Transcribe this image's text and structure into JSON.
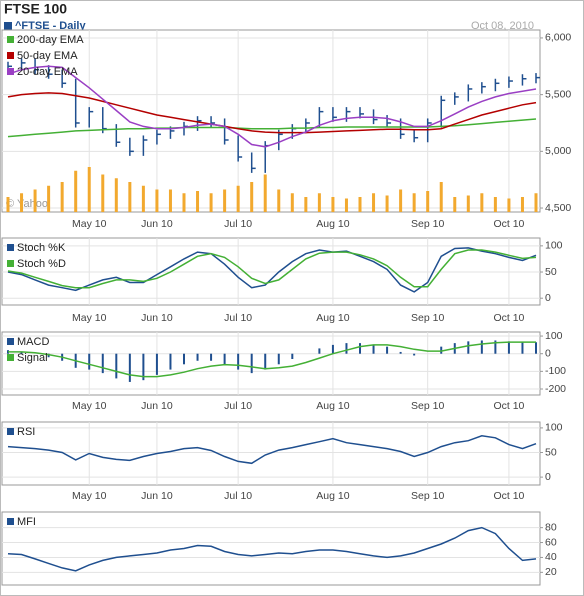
{
  "header": {
    "title": "FTSE 100",
    "subtitle": "^FTSE - Daily",
    "date": "Oct 08, 2010",
    "watermark": "© Yahoo!"
  },
  "chart_data": [
    {
      "type": "ohlc",
      "categories": [
        null,
        null,
        null,
        null,
        null,
        null,
        "May 10",
        null,
        null,
        null,
        null,
        "Jun 10",
        null,
        null,
        null,
        null,
        null,
        "Jul 10",
        null,
        null,
        null,
        null,
        null,
        null,
        "Aug 10",
        null,
        null,
        null,
        null,
        null,
        null,
        "Sep 10",
        null,
        null,
        null,
        null,
        null,
        "Oct 10",
        null,
        null
      ],
      "color": "#1f4f8f",
      "high": [
        5790,
        5820,
        5820,
        5760,
        5720,
        5640,
        5390,
        5390,
        5240,
        5120,
        5140,
        5190,
        5220,
        5260,
        5310,
        5310,
        5290,
        5140,
        4990,
        5090,
        5190,
        5240,
        5290,
        5390,
        5390,
        5390,
        5390,
        5370,
        5320,
        5290,
        5190,
        5290,
        5490,
        5520,
        5590,
        5610,
        5640,
        5660,
        5680,
        5690
      ],
      "low": [
        5710,
        5710,
        5680,
        5640,
        5560,
        5210,
        5210,
        5160,
        5040,
        4960,
        4960,
        5060,
        5110,
        5140,
        5180,
        5210,
        5060,
        4910,
        4810,
        4810,
        5010,
        5110,
        5160,
        5210,
        5260,
        5260,
        5290,
        5240,
        5210,
        5110,
        5080,
        5080,
        5210,
        5410,
        5440,
        5510,
        5530,
        5560,
        5580,
        5600
      ],
      "close": [
        5750,
        5780,
        5720,
        5680,
        5600,
        5250,
        5350,
        5200,
        5080,
        5000,
        5100,
        5150,
        5180,
        5220,
        5270,
        5250,
        5100,
        4950,
        4850,
        5050,
        5150,
        5200,
        5250,
        5350,
        5300,
        5350,
        5330,
        5280,
        5250,
        5150,
        5120,
        5250,
        5450,
        5480,
        5550,
        5570,
        5600,
        5620,
        5640,
        5650
      ],
      "series": [
        {
          "name": "200-day EMA",
          "color": "#44b035",
          "values": [
            5130,
            5140,
            5150,
            5160,
            5170,
            5180,
            5185,
            5190,
            5195,
            5200,
            5200,
            5205,
            5205,
            5210,
            5210,
            5210,
            5210,
            5205,
            5200,
            5200,
            5200,
            5205,
            5205,
            5210,
            5210,
            5215,
            5215,
            5215,
            5215,
            5215,
            5215,
            5215,
            5220,
            5225,
            5235,
            5245,
            5255,
            5265,
            5275,
            5285
          ]
        },
        {
          "name": "50-day EMA",
          "color": "#b40000",
          "values": [
            5480,
            5500,
            5510,
            5515,
            5510,
            5490,
            5470,
            5440,
            5410,
            5380,
            5350,
            5320,
            5300,
            5280,
            5260,
            5240,
            5220,
            5200,
            5180,
            5170,
            5165,
            5165,
            5165,
            5170,
            5175,
            5180,
            5185,
            5190,
            5195,
            5195,
            5190,
            5190,
            5200,
            5240,
            5280,
            5320,
            5350,
            5380,
            5410,
            5430
          ]
        },
        {
          "name": "20-day EMA",
          "color": "#9a3fc4",
          "values": [
            5680,
            5720,
            5740,
            5750,
            5740,
            5650,
            5560,
            5460,
            5360,
            5260,
            5220,
            5200,
            5200,
            5210,
            5230,
            5240,
            5220,
            5150,
            5060,
            5040,
            5080,
            5130,
            5170,
            5230,
            5270,
            5290,
            5300,
            5300,
            5290,
            5260,
            5220,
            5220,
            5270,
            5330,
            5390,
            5440,
            5480,
            5510,
            5530,
            5550
          ]
        }
      ],
      "volume": {
        "color": "#f2a92e",
        "values": [
          20,
          25,
          30,
          35,
          40,
          55,
          60,
          50,
          45,
          40,
          35,
          30,
          30,
          25,
          28,
          25,
          30,
          35,
          40,
          50,
          30,
          25,
          20,
          25,
          20,
          18,
          20,
          25,
          22,
          30,
          25,
          28,
          40,
          20,
          22,
          25,
          20,
          18,
          20,
          25
        ]
      },
      "ylim": [
        4465,
        6070
      ],
      "yticks": [
        {
          "value": 4500,
          "label": "4,500"
        },
        {
          "value": 5000,
          "label": "5,000"
        },
        {
          "value": 5500,
          "label": "5,500"
        },
        {
          "value": 6000,
          "label": "6,000"
        }
      ],
      "grid": true
    },
    {
      "type": "line",
      "categories": [
        null,
        null,
        null,
        null,
        null,
        null,
        "May 10",
        null,
        null,
        null,
        null,
        "Jun 10",
        null,
        null,
        null,
        null,
        null,
        "Jul 10",
        null,
        null,
        null,
        null,
        null,
        null,
        "Aug 10",
        null,
        null,
        null,
        null,
        null,
        null,
        "Sep 10",
        null,
        null,
        null,
        null,
        null,
        "Oct 10",
        null,
        null
      ],
      "series": [
        {
          "name": "Stoch %K",
          "color": "#1f4f8f",
          "values": [
            50,
            45,
            35,
            25,
            20,
            15,
            25,
            35,
            40,
            30,
            30,
            45,
            60,
            75,
            88,
            85,
            65,
            40,
            20,
            25,
            50,
            70,
            85,
            92,
            88,
            90,
            80,
            70,
            55,
            25,
            12,
            30,
            80,
            95,
            96,
            90,
            85,
            78,
            72,
            82
          ]
        },
        {
          "name": "Stoch %D",
          "color": "#44b035",
          "values": [
            52,
            48,
            40,
            32,
            24,
            20,
            20,
            28,
            35,
            35,
            32,
            38,
            50,
            65,
            80,
            85,
            78,
            60,
            38,
            28,
            35,
            55,
            75,
            86,
            88,
            88,
            83,
            75,
            62,
            40,
            22,
            22,
            55,
            85,
            92,
            92,
            88,
            82,
            76,
            78
          ]
        }
      ],
      "ylim": [
        -13,
        115
      ],
      "yticks": [
        0,
        50,
        100
      ],
      "grid": true
    },
    {
      "type": "combo",
      "categories": [
        null,
        null,
        null,
        null,
        null,
        null,
        "May 10",
        null,
        null,
        null,
        null,
        "Jun 10",
        null,
        null,
        null,
        null,
        null,
        "Jul 10",
        null,
        null,
        null,
        null,
        null,
        null,
        "Aug 10",
        null,
        null,
        null,
        null,
        null,
        null,
        "Sep 10",
        null,
        null,
        null,
        null,
        null,
        "Oct 10",
        null,
        null
      ],
      "series": [
        {
          "name": "MACD",
          "type": "bar",
          "color": "#1f4f8f",
          "values": [
            20,
            10,
            0,
            -20,
            -40,
            -80,
            -90,
            -110,
            -140,
            -160,
            -150,
            -120,
            -90,
            -60,
            -40,
            -40,
            -60,
            -90,
            -110,
            -90,
            -60,
            -30,
            0,
            30,
            50,
            60,
            60,
            50,
            40,
            10,
            -10,
            0,
            40,
            60,
            70,
            75,
            75,
            70,
            65,
            65
          ]
        },
        {
          "name": "Signal",
          "type": "line",
          "color": "#44b035",
          "values": [
            10,
            10,
            5,
            -5,
            -20,
            -40,
            -60,
            -80,
            -100,
            -120,
            -130,
            -130,
            -120,
            -105,
            -85,
            -70,
            -62,
            -65,
            -75,
            -85,
            -80,
            -70,
            -50,
            -25,
            0,
            20,
            40,
            50,
            50,
            40,
            25,
            15,
            15,
            30,
            45,
            55,
            62,
            66,
            66,
            66
          ]
        }
      ],
      "ylim": [
        -234,
        123
      ],
      "yticks": [
        -200,
        -100,
        0,
        100
      ],
      "grid": true
    },
    {
      "type": "line",
      "categories": [
        null,
        null,
        null,
        null,
        null,
        null,
        "May 10",
        null,
        null,
        null,
        null,
        "Jun 10",
        null,
        null,
        null,
        null,
        null,
        "Jul 10",
        null,
        null,
        null,
        null,
        null,
        null,
        "Aug 10",
        null,
        null,
        null,
        null,
        null,
        null,
        "Sep 10",
        null,
        null,
        null,
        null,
        null,
        "Oct 10",
        null,
        null
      ],
      "series": [
        {
          "name": "RSI",
          "color": "#1f4f8f",
          "values": [
            62,
            60,
            58,
            55,
            50,
            35,
            48,
            40,
            36,
            34,
            42,
            48,
            52,
            58,
            60,
            54,
            42,
            32,
            28,
            45,
            55,
            60,
            66,
            72,
            78,
            70,
            66,
            62,
            58,
            52,
            42,
            50,
            62,
            70,
            74,
            84,
            80,
            66,
            58,
            68
          ]
        }
      ],
      "ylim": [
        -16,
        112
      ],
      "yticks": [
        0,
        50,
        100
      ],
      "grid": true
    },
    {
      "type": "line",
      "series": [
        {
          "name": "MFI",
          "color": "#1f4f8f",
          "values": [
            45,
            44,
            38,
            32,
            26,
            22,
            30,
            36,
            40,
            42,
            44,
            46,
            50,
            52,
            56,
            55,
            48,
            44,
            42,
            44,
            46,
            45,
            48,
            50,
            50,
            48,
            45,
            42,
            40,
            42,
            46,
            52,
            58,
            66,
            76,
            80,
            72,
            52,
            36,
            38
          ]
        }
      ],
      "ylim": [
        3,
        101
      ],
      "yticks": [
        20,
        40,
        60,
        80
      ],
      "grid": true
    }
  ]
}
